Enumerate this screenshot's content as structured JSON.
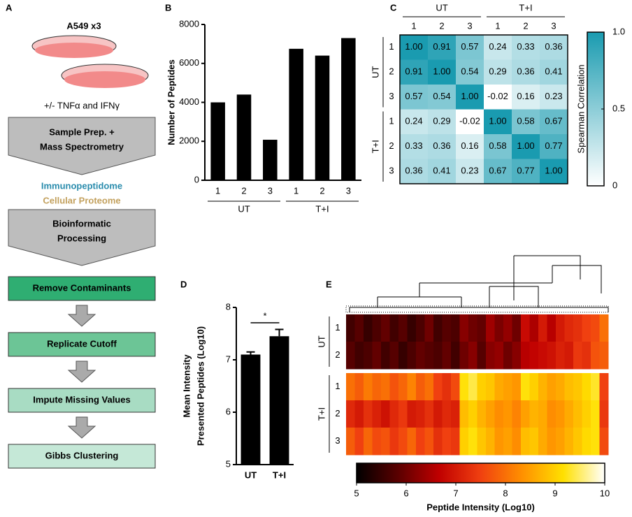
{
  "panel_labels": [
    "A",
    "B",
    "C",
    "D",
    "E"
  ],
  "workflow": {
    "cells": "A549 x3",
    "treatment": "+/- TNFα and IFNγ",
    "steps": [
      [
        "Sample Prep. +",
        "Mass Spectrometry"
      ],
      [
        "Bioinformatic",
        "Processing"
      ]
    ],
    "outputs": [
      "Immunopeptidome",
      "Cellular Proteome"
    ],
    "filters": [
      "Remove Contaminants",
      "Replicate Cutoff",
      "Impute Missing Values",
      "Gibbs Clustering"
    ]
  },
  "chart_data": [
    {
      "type": "bar",
      "y_label": "Number of Peptides",
      "groups": [
        {
          "name": "UT",
          "categories": [
            "1",
            "2",
            "3"
          ]
        },
        {
          "name": "T+I",
          "categories": [
            "1",
            "2",
            "3"
          ]
        }
      ],
      "values": [
        4000,
        4400,
        2080,
        6750,
        6400,
        7300
      ],
      "color": "#000000",
      "ylim": [
        0,
        8000
      ],
      "yticks": [
        0,
        2000,
        4000,
        6000,
        8000
      ]
    },
    {
      "type": "heatmap",
      "x_groups": [
        {
          "name": "UT",
          "labels": [
            "1",
            "2",
            "3"
          ]
        },
        {
          "name": "T+I",
          "labels": [
            "1",
            "2",
            "3"
          ]
        }
      ],
      "y_groups": [
        {
          "name": "UT",
          "labels": [
            "1",
            "2",
            "3"
          ]
        },
        {
          "name": "T+I",
          "labels": [
            "1",
            "2",
            "3"
          ]
        }
      ],
      "values": [
        [
          1,
          0.91,
          0.57,
          0.24,
          0.33,
          0.36
        ],
        [
          0.91,
          1,
          0.54,
          0.29,
          0.36,
          0.41
        ],
        [
          0.57,
          0.54,
          1,
          -0.02,
          0.16,
          0.23
        ],
        [
          0.24,
          0.29,
          -0.02,
          1,
          0.58,
          0.67
        ],
        [
          0.33,
          0.36,
          0.16,
          0.58,
          1,
          0.77
        ],
        [
          0.36,
          0.41,
          0.23,
          0.67,
          0.77,
          1
        ]
      ],
      "value_labels": [
        [
          "1.00",
          "0.91",
          "0.57",
          "0.24",
          "0.33",
          "0.36"
        ],
        [
          "0.91",
          "1.00",
          "0.54",
          "0.29",
          "0.36",
          "0.41"
        ],
        [
          "0.57",
          "0.54",
          "1.00",
          "-0.02",
          "0.16",
          "0.23"
        ],
        [
          "0.24",
          "0.29",
          "-0.02",
          "1.00",
          "0.58",
          "0.67"
        ],
        [
          "0.33",
          "0.36",
          "0.16",
          "0.58",
          "1.00",
          "0.77"
        ],
        [
          "0.36",
          "0.41",
          "0.23",
          "0.67",
          "0.77",
          "1.00"
        ]
      ],
      "colorbar": {
        "label": "Spearman Correlation",
        "lim": [
          0,
          1
        ],
        "ticks": [
          0,
          0.5,
          {
            "value": 1,
            "label": "1.0"
          }
        ],
        "colors": [
          "#ffffff",
          "#1a9bb0"
        ]
      }
    },
    {
      "type": "bar",
      "y_label": [
        "Mean Intensity",
        "Presented Peptides (Log10)"
      ],
      "categories": [
        "UT",
        "T+I"
      ],
      "values": [
        7.1,
        7.45
      ],
      "errors": [
        0.05,
        0.13
      ],
      "color": "#000000",
      "annotation": "*",
      "ylim": [
        5,
        8
      ],
      "yticks": [
        5,
        6,
        7,
        8
      ]
    },
    {
      "type": "heatmap",
      "y_groups": [
        {
          "name": "UT",
          "labels": [
            "1",
            "2"
          ]
        },
        {
          "name": "T+I",
          "labels": [
            "1",
            "2",
            "3"
          ]
        }
      ],
      "values": [
        [
          5.6,
          5.8,
          5.5,
          5.7,
          5.9,
          5.6,
          5.8,
          5.5,
          5.7,
          6.0,
          5.6,
          5.8,
          5.7,
          6.2,
          6.0,
          5.9,
          6.4,
          6.1,
          6.3,
          6.0,
          6.8,
          6.5,
          7.0,
          6.6,
          7.0,
          7.2,
          7.3,
          7.5,
          7.6,
          8.0
        ],
        [
          5.8,
          5.6,
          5.7,
          5.9,
          5.6,
          5.8,
          5.5,
          5.7,
          5.9,
          5.8,
          5.7,
          5.9,
          5.6,
          6.0,
          6.2,
          5.8,
          6.2,
          6.3,
          6.0,
          6.2,
          6.6,
          6.7,
          6.8,
          6.9,
          7.1,
          7.0,
          7.4,
          7.3,
          7.7,
          7.8
        ],
        [
          8.0,
          7.8,
          8.1,
          7.9,
          8.0,
          7.7,
          7.9,
          8.2,
          7.8,
          8.0,
          7.5,
          7.3,
          7.6,
          9.2,
          9.4,
          9.0,
          8.9,
          8.6,
          8.5,
          8.4,
          9.2,
          9.0,
          8.7,
          8.5,
          8.6,
          8.8,
          8.9,
          9.1,
          9.3,
          7.5
        ],
        [
          7.2,
          7.0,
          7.3,
          7.1,
          6.9,
          7.2,
          7.4,
          7.0,
          7.1,
          7.3,
          7.0,
          7.2,
          7.1,
          8.8,
          9.0,
          8.7,
          8.5,
          8.3,
          8.4,
          8.2,
          8.5,
          8.7,
          8.6,
          8.3,
          8.4,
          8.6,
          8.8,
          9.0,
          9.2,
          7.4
        ],
        [
          7.8,
          7.5,
          7.9,
          7.6,
          7.7,
          7.4,
          7.6,
          7.9,
          7.5,
          7.7,
          7.3,
          7.5,
          7.4,
          9.0,
          9.2,
          8.9,
          8.7,
          8.4,
          8.5,
          8.3,
          8.8,
          8.9,
          8.6,
          8.4,
          8.5,
          8.7,
          8.9,
          9.1,
          9.2,
          7.6
        ]
      ],
      "colorbar": {
        "label": "Peptide Intensity (Log10)",
        "lim": [
          5,
          10
        ],
        "ticks": [
          5,
          6,
          7,
          8,
          9,
          10
        ],
        "colors": [
          "#000000",
          "#5a0000",
          "#c00000",
          "#f04010",
          "#ff9000",
          "#ffe000",
          "#ffffff"
        ]
      }
    }
  ]
}
